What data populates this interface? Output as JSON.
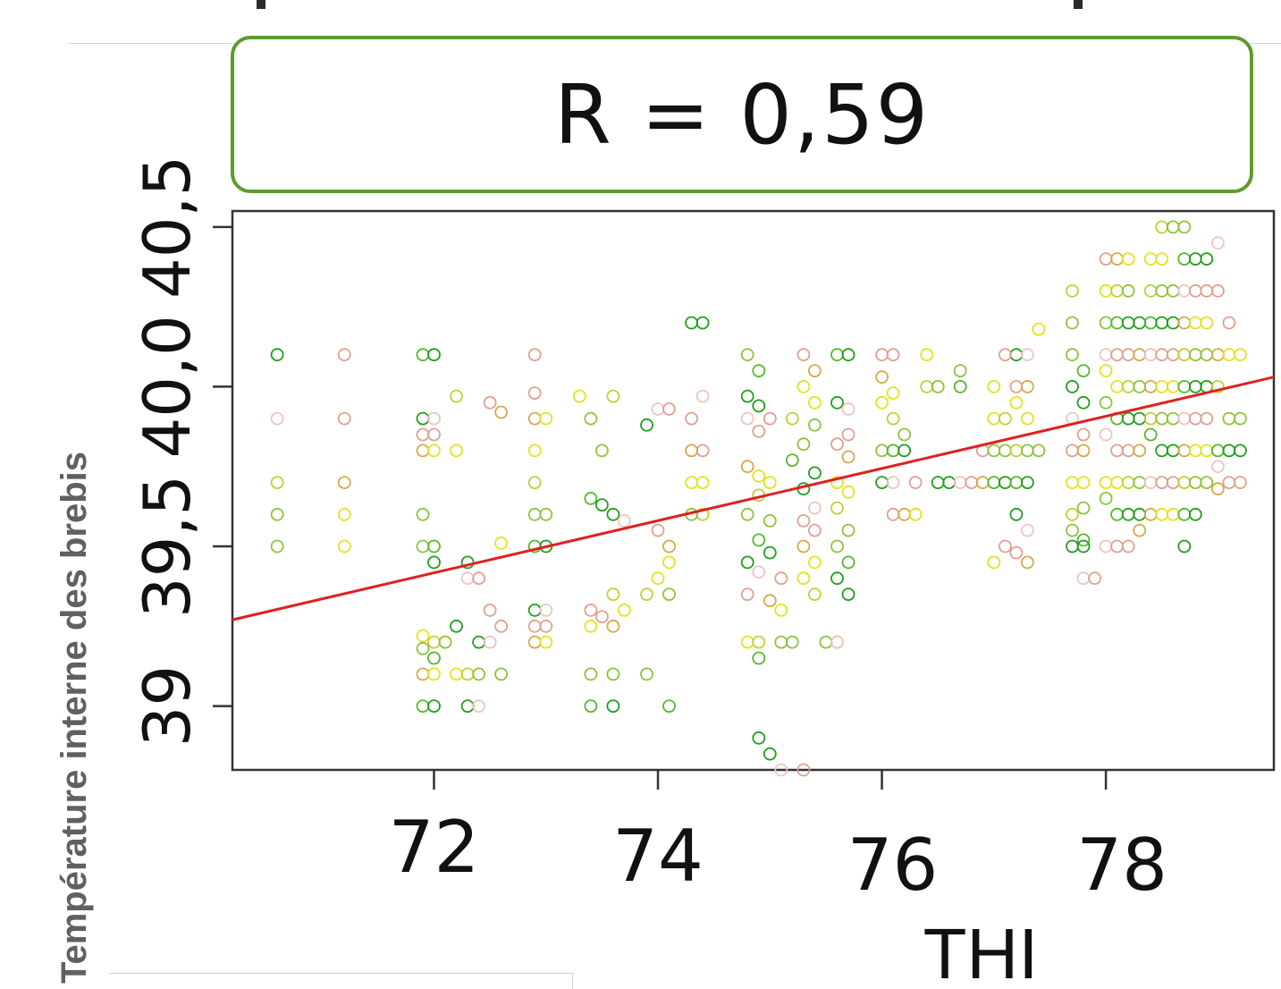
{
  "annotation": {
    "r_text": "R = 0,59"
  },
  "chart_data": {
    "type": "scatter",
    "title": "",
    "xlabel": "THI",
    "ylabel": "Température interne des brebis",
    "xlim": [
      70.2,
      79.5
    ],
    "ylim": [
      38.8,
      40.55
    ],
    "x_ticks": [
      72,
      74,
      76,
      78
    ],
    "x_tick_labels": [
      "72",
      "74",
      "76",
      "78"
    ],
    "y_ticks": [
      39.0,
      39.5,
      40.0,
      40.5
    ],
    "y_tick_labels": [
      "39",
      "39,5",
      "40,0",
      "40,5"
    ],
    "grid": false,
    "legend": "none",
    "marker": "open-circle",
    "colors": [
      "#1f9e1f",
      "#55b82a",
      "#8cc43a",
      "#c2cf35",
      "#e6e21c",
      "#d8a84a",
      "#e0a090",
      "#eec4c4"
    ],
    "correlation_label": "R = 0,59",
    "regression_line": {
      "color": "#e02020",
      "x": [
        70.2,
        79.5
      ],
      "y": [
        39.27,
        40.03
      ]
    },
    "points": [
      [
        70.6,
        40.1
      ],
      [
        70.6,
        39.9
      ],
      [
        71.2,
        40.1
      ],
      [
        71.2,
        39.9
      ],
      [
        71.2,
        39.7
      ],
      [
        71.2,
        39.6
      ],
      [
        71.2,
        39.5
      ],
      [
        70.6,
        39.7
      ],
      [
        70.6,
        39.6
      ],
      [
        70.6,
        39.5
      ],
      [
        71.9,
        40.1
      ],
      [
        72.0,
        40.1
      ],
      [
        71.9,
        39.9
      ],
      [
        72.0,
        39.9
      ],
      [
        71.9,
        39.85
      ],
      [
        72.0,
        39.85
      ],
      [
        71.9,
        39.8
      ],
      [
        72.0,
        39.8
      ],
      [
        72.2,
        39.8
      ],
      [
        72.2,
        39.97
      ],
      [
        71.9,
        39.6
      ],
      [
        71.9,
        39.5
      ],
      [
        72.0,
        39.5
      ],
      [
        72.0,
        39.45
      ],
      [
        72.3,
        39.45
      ],
      [
        72.3,
        39.4
      ],
      [
        72.4,
        39.4
      ],
      [
        72.5,
        39.95
      ],
      [
        72.6,
        39.92
      ],
      [
        72.6,
        39.51
      ],
      [
        71.9,
        39.22
      ],
      [
        72.0,
        39.2
      ],
      [
        72.1,
        39.2
      ],
      [
        71.9,
        39.18
      ],
      [
        72.0,
        39.15
      ],
      [
        72.2,
        39.25
      ],
      [
        72.4,
        39.2
      ],
      [
        72.5,
        39.2
      ],
      [
        72.6,
        39.25
      ],
      [
        72.5,
        39.3
      ],
      [
        71.9,
        39.1
      ],
      [
        72.0,
        39.1
      ],
      [
        72.2,
        39.1
      ],
      [
        72.3,
        39.1
      ],
      [
        72.4,
        39.1
      ],
      [
        72.6,
        39.1
      ],
      [
        71.9,
        39.0
      ],
      [
        72.0,
        39.0
      ],
      [
        72.3,
        39.0
      ],
      [
        72.4,
        39.0
      ],
      [
        72.9,
        40.1
      ],
      [
        72.9,
        39.98
      ],
      [
        72.9,
        39.9
      ],
      [
        73.0,
        39.9
      ],
      [
        72.9,
        39.8
      ],
      [
        72.9,
        39.7
      ],
      [
        72.9,
        39.6
      ],
      [
        73.0,
        39.6
      ],
      [
        72.9,
        39.5
      ],
      [
        73.0,
        39.5
      ],
      [
        72.9,
        39.3
      ],
      [
        73.0,
        39.3
      ],
      [
        72.9,
        39.25
      ],
      [
        73.0,
        39.25
      ],
      [
        72.9,
        39.2
      ],
      [
        73.0,
        39.2
      ],
      [
        73.3,
        39.97
      ],
      [
        73.6,
        39.97
      ],
      [
        73.4,
        39.9
      ],
      [
        73.5,
        39.8
      ],
      [
        73.4,
        39.65
      ],
      [
        73.5,
        39.63
      ],
      [
        73.6,
        39.6
      ],
      [
        73.7,
        39.58
      ],
      [
        73.4,
        39.3
      ],
      [
        73.5,
        39.28
      ],
      [
        73.6,
        39.25
      ],
      [
        73.7,
        39.3
      ],
      [
        73.4,
        39.25
      ],
      [
        73.6,
        39.35
      ],
      [
        73.4,
        39.1
      ],
      [
        73.6,
        39.1
      ],
      [
        73.4,
        39.0
      ],
      [
        73.6,
        39.0
      ],
      [
        73.9,
        39.88
      ],
      [
        74.0,
        39.93
      ],
      [
        74.1,
        39.93
      ],
      [
        74.0,
        39.55
      ],
      [
        74.1,
        39.5
      ],
      [
        74.1,
        39.45
      ],
      [
        74.0,
        39.4
      ],
      [
        73.9,
        39.35
      ],
      [
        74.1,
        39.35
      ],
      [
        73.9,
        39.1
      ],
      [
        74.1,
        39.0
      ],
      [
        74.3,
        40.2
      ],
      [
        74.4,
        40.2
      ],
      [
        74.4,
        39.97
      ],
      [
        74.3,
        39.9
      ],
      [
        74.4,
        39.8
      ],
      [
        74.3,
        39.8
      ],
      [
        74.3,
        39.7
      ],
      [
        74.4,
        39.7
      ],
      [
        74.4,
        39.6
      ],
      [
        74.3,
        39.6
      ],
      [
        74.8,
        40.1
      ],
      [
        74.9,
        40.05
      ],
      [
        74.8,
        39.97
      ],
      [
        74.9,
        39.94
      ],
      [
        74.8,
        39.9
      ],
      [
        75.0,
        39.9
      ],
      [
        74.9,
        39.86
      ],
      [
        74.8,
        39.75
      ],
      [
        74.9,
        39.72
      ],
      [
        75.0,
        39.7
      ],
      [
        74.9,
        39.66
      ],
      [
        74.8,
        39.6
      ],
      [
        75.0,
        39.58
      ],
      [
        74.9,
        39.52
      ],
      [
        75.0,
        39.48
      ],
      [
        74.8,
        39.45
      ],
      [
        74.9,
        39.42
      ],
      [
        75.1,
        39.4
      ],
      [
        74.8,
        39.35
      ],
      [
        75.0,
        39.33
      ],
      [
        75.1,
        39.3
      ],
      [
        74.8,
        39.2
      ],
      [
        74.9,
        39.2
      ],
      [
        75.1,
        39.2
      ],
      [
        75.2,
        39.2
      ],
      [
        74.9,
        39.15
      ],
      [
        74.9,
        38.9
      ],
      [
        75.0,
        38.85
      ],
      [
        75.1,
        38.8
      ],
      [
        75.3,
        38.8
      ],
      [
        75.3,
        40.1
      ],
      [
        75.4,
        40.05
      ],
      [
        75.3,
        40.0
      ],
      [
        75.4,
        39.95
      ],
      [
        75.2,
        39.9
      ],
      [
        75.4,
        39.88
      ],
      [
        75.3,
        39.82
      ],
      [
        75.2,
        39.77
      ],
      [
        75.4,
        39.73
      ],
      [
        75.3,
        39.68
      ],
      [
        75.4,
        39.62
      ],
      [
        75.3,
        39.58
      ],
      [
        75.4,
        39.55
      ],
      [
        75.3,
        39.5
      ],
      [
        75.4,
        39.45
      ],
      [
        75.3,
        39.4
      ],
      [
        75.4,
        39.35
      ],
      [
        75.5,
        39.2
      ],
      [
        75.6,
        39.2
      ],
      [
        75.6,
        40.1
      ],
      [
        75.7,
        40.1
      ],
      [
        75.6,
        39.95
      ],
      [
        75.7,
        39.93
      ],
      [
        75.7,
        39.85
      ],
      [
        75.6,
        39.82
      ],
      [
        75.7,
        39.78
      ],
      [
        75.6,
        39.7
      ],
      [
        75.7,
        39.67
      ],
      [
        75.6,
        39.62
      ],
      [
        75.7,
        39.55
      ],
      [
        75.6,
        39.5
      ],
      [
        75.7,
        39.45
      ],
      [
        75.6,
        39.4
      ],
      [
        75.7,
        39.35
      ],
      [
        75.6,
        39.2
      ],
      [
        76.0,
        40.1
      ],
      [
        76.1,
        40.1
      ],
      [
        76.0,
        40.03
      ],
      [
        76.1,
        39.98
      ],
      [
        76.0,
        39.95
      ],
      [
        76.1,
        39.9
      ],
      [
        76.2,
        39.85
      ],
      [
        76.0,
        39.8
      ],
      [
        76.1,
        39.8
      ],
      [
        76.2,
        39.8
      ],
      [
        76.0,
        39.7
      ],
      [
        76.1,
        39.7
      ],
      [
        76.3,
        39.7
      ],
      [
        76.1,
        39.6
      ],
      [
        76.2,
        39.6
      ],
      [
        76.3,
        39.6
      ],
      [
        76.4,
        40.1
      ],
      [
        76.4,
        40.0
      ],
      [
        76.5,
        40.0
      ],
      [
        76.7,
        40.05
      ],
      [
        76.7,
        40.0
      ],
      [
        76.5,
        39.7
      ],
      [
        76.6,
        39.7
      ],
      [
        76.7,
        39.7
      ],
      [
        76.8,
        39.7
      ],
      [
        76.9,
        39.8
      ],
      [
        76.9,
        39.7
      ],
      [
        77.0,
        40.0
      ],
      [
        77.0,
        39.9
      ],
      [
        77.1,
        39.9
      ],
      [
        77.0,
        39.8
      ],
      [
        77.1,
        39.8
      ],
      [
        77.0,
        39.7
      ],
      [
        77.1,
        39.7
      ],
      [
        77.2,
        40.1
      ],
      [
        77.3,
        40.1
      ],
      [
        77.1,
        40.1
      ],
      [
        77.2,
        40.0
      ],
      [
        77.3,
        40.0
      ],
      [
        77.2,
        39.95
      ],
      [
        77.3,
        39.9
      ],
      [
        77.2,
        39.8
      ],
      [
        77.3,
        39.8
      ],
      [
        77.4,
        39.8
      ],
      [
        77.2,
        39.7
      ],
      [
        77.3,
        39.7
      ],
      [
        77.2,
        39.6
      ],
      [
        77.3,
        39.55
      ],
      [
        77.1,
        39.5
      ],
      [
        77.2,
        39.48
      ],
      [
        77.3,
        39.45
      ],
      [
        77.4,
        40.18
      ],
      [
        77.0,
        39.45
      ],
      [
        77.7,
        40.3
      ],
      [
        77.7,
        40.2
      ],
      [
        77.7,
        40.1
      ],
      [
        77.8,
        40.05
      ],
      [
        77.7,
        40.0
      ],
      [
        77.8,
        39.95
      ],
      [
        77.7,
        39.9
      ],
      [
        77.8,
        39.85
      ],
      [
        77.7,
        39.8
      ],
      [
        77.8,
        39.8
      ],
      [
        77.7,
        39.7
      ],
      [
        77.8,
        39.7
      ],
      [
        77.7,
        39.6
      ],
      [
        77.8,
        39.62
      ],
      [
        77.7,
        39.55
      ],
      [
        77.8,
        39.52
      ],
      [
        77.7,
        39.5
      ],
      [
        77.8,
        39.5
      ],
      [
        77.8,
        39.4
      ],
      [
        77.9,
        39.4
      ],
      [
        78.0,
        40.4
      ],
      [
        78.1,
        40.4
      ],
      [
        78.2,
        40.4
      ],
      [
        78.0,
        40.3
      ],
      [
        78.1,
        40.3
      ],
      [
        78.2,
        40.3
      ],
      [
        78.0,
        40.2
      ],
      [
        78.1,
        40.2
      ],
      [
        78.2,
        40.2
      ],
      [
        78.3,
        40.2
      ],
      [
        78.0,
        40.1
      ],
      [
        78.1,
        40.1
      ],
      [
        78.2,
        40.1
      ],
      [
        78.3,
        40.1
      ],
      [
        78.0,
        40.05
      ],
      [
        78.1,
        40.0
      ],
      [
        78.2,
        40.0
      ],
      [
        78.3,
        40.0
      ],
      [
        78.0,
        39.95
      ],
      [
        78.1,
        39.9
      ],
      [
        78.2,
        39.9
      ],
      [
        78.3,
        39.9
      ],
      [
        78.0,
        39.85
      ],
      [
        78.1,
        39.8
      ],
      [
        78.2,
        39.8
      ],
      [
        78.3,
        39.8
      ],
      [
        78.0,
        39.7
      ],
      [
        78.1,
        39.7
      ],
      [
        78.2,
        39.7
      ],
      [
        78.3,
        39.7
      ],
      [
        78.0,
        39.65
      ],
      [
        78.1,
        39.6
      ],
      [
        78.2,
        39.6
      ],
      [
        78.3,
        39.6
      ],
      [
        78.0,
        39.5
      ],
      [
        78.1,
        39.5
      ],
      [
        78.2,
        39.5
      ],
      [
        78.3,
        39.55
      ],
      [
        78.4,
        40.4
      ],
      [
        78.5,
        40.4
      ],
      [
        78.4,
        40.3
      ],
      [
        78.5,
        40.3
      ],
      [
        78.6,
        40.3
      ],
      [
        78.4,
        40.2
      ],
      [
        78.5,
        40.2
      ],
      [
        78.6,
        40.2
      ],
      [
        78.4,
        40.1
      ],
      [
        78.5,
        40.1
      ],
      [
        78.6,
        40.1
      ],
      [
        78.4,
        40.0
      ],
      [
        78.5,
        40.0
      ],
      [
        78.6,
        40.0
      ],
      [
        78.4,
        39.9
      ],
      [
        78.5,
        39.9
      ],
      [
        78.6,
        39.9
      ],
      [
        78.4,
        39.85
      ],
      [
        78.5,
        39.8
      ],
      [
        78.6,
        39.8
      ],
      [
        78.4,
        39.7
      ],
      [
        78.5,
        39.7
      ],
      [
        78.6,
        39.7
      ],
      [
        78.4,
        39.6
      ],
      [
        78.5,
        39.6
      ],
      [
        78.6,
        39.6
      ],
      [
        78.5,
        40.5
      ],
      [
        78.6,
        40.5
      ],
      [
        78.7,
        40.5
      ],
      [
        78.7,
        40.4
      ],
      [
        78.8,
        40.4
      ],
      [
        78.9,
        40.4
      ],
      [
        78.7,
        40.3
      ],
      [
        78.8,
        40.3
      ],
      [
        78.9,
        40.3
      ],
      [
        78.7,
        40.2
      ],
      [
        78.8,
        40.2
      ],
      [
        78.9,
        40.2
      ],
      [
        78.7,
        40.1
      ],
      [
        78.8,
        40.1
      ],
      [
        78.9,
        40.1
      ],
      [
        78.7,
        40.0
      ],
      [
        78.8,
        40.0
      ],
      [
        78.9,
        40.0
      ],
      [
        78.7,
        39.9
      ],
      [
        78.8,
        39.9
      ],
      [
        78.9,
        39.9
      ],
      [
        78.7,
        39.8
      ],
      [
        78.8,
        39.8
      ],
      [
        78.9,
        39.8
      ],
      [
        78.7,
        39.7
      ],
      [
        78.8,
        39.7
      ],
      [
        78.9,
        39.7
      ],
      [
        78.7,
        39.6
      ],
      [
        78.8,
        39.6
      ],
      [
        78.7,
        39.5
      ],
      [
        79.0,
        40.45
      ],
      [
        79.0,
        40.3
      ],
      [
        79.1,
        40.2
      ],
      [
        79.0,
        40.1
      ],
      [
        79.1,
        40.1
      ],
      [
        79.2,
        40.1
      ],
      [
        79.0,
        40.0
      ],
      [
        79.1,
        39.9
      ],
      [
        79.2,
        39.9
      ],
      [
        79.0,
        39.8
      ],
      [
        79.1,
        39.8
      ],
      [
        79.2,
        39.8
      ],
      [
        79.0,
        39.75
      ],
      [
        79.1,
        39.7
      ],
      [
        79.2,
        39.7
      ],
      [
        79.0,
        39.68
      ]
    ]
  }
}
